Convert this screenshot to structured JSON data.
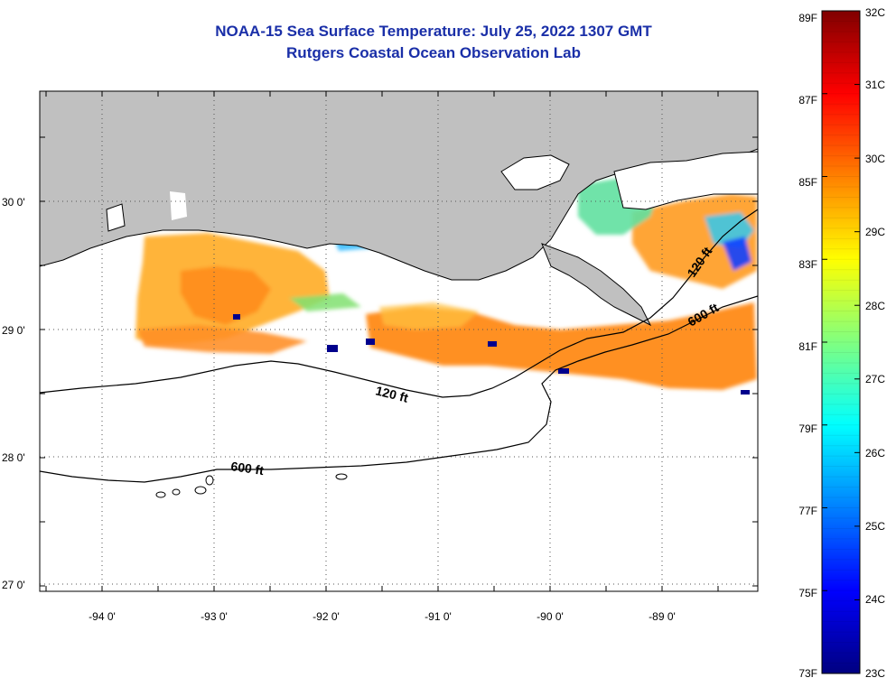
{
  "header": {
    "title": "NOAA-15 Sea Surface Temperature:  July 25, 2022 1307 GMT",
    "subtitle": "Rutgers Coastal Ocean Observation Lab"
  },
  "map": {
    "lon_range": [
      -94.55,
      -88.2
    ],
    "lat_range": [
      26.95,
      30.85
    ],
    "lon_ticks": [
      {
        "value": -94,
        "label": "-94 0'"
      },
      {
        "value": -93,
        "label": "-93 0'"
      },
      {
        "value": -92,
        "label": "-92 0'"
      },
      {
        "value": -91,
        "label": "-91 0'"
      },
      {
        "value": -90,
        "label": "-90 0'"
      },
      {
        "value": -89,
        "label": "-89 0'"
      }
    ],
    "lat_ticks": [
      {
        "value": 30,
        "label": "30 0'"
      },
      {
        "value": 29,
        "label": "29 0'"
      },
      {
        "value": 28,
        "label": "28 0'"
      },
      {
        "value": 27,
        "label": "27 0'"
      }
    ],
    "contour_labels": {
      "c120_west": "120 ft",
      "c120_east": "120 ft",
      "c600_west": "600 ft",
      "c600_east": "600 ft"
    },
    "land_color": "#c0c0c0",
    "ocean_color": "#ffffff"
  },
  "colorbar": {
    "fahrenheit": [
      "89F",
      "87F",
      "85F",
      "83F",
      "81F",
      "79F",
      "77F",
      "75F",
      "73F"
    ],
    "celsius": [
      "32C",
      "31C",
      "30C",
      "29C",
      "28C",
      "27C",
      "26C",
      "25C",
      "24C",
      "23C"
    ],
    "gradient_stops": [
      "#000080",
      "#0000ff",
      "#0080ff",
      "#00ffff",
      "#80ff80",
      "#ffff00",
      "#ff8000",
      "#ff0000",
      "#800000"
    ]
  },
  "sst_patches": [
    {
      "region": "west shelf",
      "temp_c": 29.7,
      "color": "#ff9a20"
    },
    {
      "region": "central shelf",
      "temp_c": 30.0,
      "color": "#ff7a10"
    },
    {
      "region": "mississippi sound",
      "temp_c": 27.5,
      "color": "#60e0a0"
    },
    {
      "region": "chandeleur east",
      "temp_c": 24.5,
      "color": "#1040ff"
    }
  ]
}
